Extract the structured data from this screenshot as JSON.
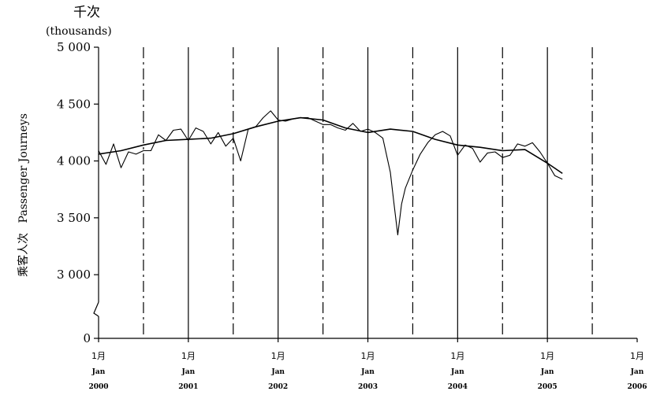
{
  "chart_data": {
    "type": "line",
    "title": "",
    "unit_label_cn": "千次",
    "unit_label_en": "(thousands)",
    "ylabel_cn": "乘客人次",
    "ylabel_en": "Passenger Journeys",
    "ylim": [
      2800,
      5000
    ],
    "y_axis_break": true,
    "yticks": [
      {
        "value": 0,
        "label": "0"
      },
      {
        "value": 3000,
        "label": "3 000"
      },
      {
        "value": 3500,
        "label": "3 500"
      },
      {
        "value": 4000,
        "label": "4 000"
      },
      {
        "value": 4500,
        "label": "4 500"
      },
      {
        "value": 5000,
        "label": "5 000"
      }
    ],
    "xlim": [
      2000.0,
      2006.0
    ],
    "xticks": [
      {
        "value": 2000,
        "cn": "1月",
        "en": "Jan",
        "year": "2000"
      },
      {
        "value": 2001,
        "cn": "1月",
        "en": "Jan",
        "year": "2001"
      },
      {
        "value": 2002,
        "cn": "1月",
        "en": "Jan",
        "year": "2002"
      },
      {
        "value": 2003,
        "cn": "1月",
        "en": "Jan",
        "year": "2003"
      },
      {
        "value": 2004,
        "cn": "1月",
        "en": "Jan",
        "year": "2004"
      },
      {
        "value": 2005,
        "cn": "1月",
        "en": "Jan",
        "year": "2005"
      },
      {
        "value": 2006,
        "cn": "1月",
        "en": "Jan",
        "year": "2006"
      }
    ],
    "solid_gridlines_at": [
      2001,
      2002,
      2003,
      2004,
      2005
    ],
    "dashed_gridlines_at": [
      2000.5,
      2001.5,
      2002.5,
      2003.5,
      2004.5,
      2005.5
    ],
    "grid": true,
    "legend": "none",
    "series": [
      {
        "style": "monthly",
        "x": [
          2000.0,
          2000.083,
          2000.167,
          2000.25,
          2000.333,
          2000.417,
          2000.5,
          2000.583,
          2000.667,
          2000.75,
          2000.833,
          2000.917,
          2001.0,
          2001.083,
          2001.167,
          2001.25,
          2001.333,
          2001.417,
          2001.5,
          2001.583,
          2001.667,
          2001.75,
          2001.833,
          2001.917,
          2002.0,
          2002.083,
          2002.167,
          2002.25,
          2002.333,
          2002.417,
          2002.5,
          2002.583,
          2002.667,
          2002.75,
          2002.833,
          2002.917,
          2003.0,
          2003.083,
          2003.167,
          2003.25,
          2003.292,
          2003.333,
          2003.375,
          2003.417,
          2003.5,
          2003.583,
          2003.667,
          2003.75,
          2003.833,
          2003.917,
          2004.0,
          2004.083,
          2004.167,
          2004.25,
          2004.333,
          2004.417,
          2004.5,
          2004.583,
          2004.667,
          2004.75,
          2004.833,
          2004.917,
          2005.0,
          2005.083,
          2005.167
        ],
        "y": [
          4090,
          3970,
          4150,
          3940,
          4080,
          4060,
          4090,
          4090,
          4230,
          4180,
          4270,
          4280,
          4180,
          4290,
          4260,
          4150,
          4250,
          4130,
          4200,
          4000,
          4280,
          4300,
          4380,
          4440,
          4360,
          4350,
          4370,
          4380,
          4380,
          4350,
          4320,
          4320,
          4290,
          4270,
          4330,
          4260,
          4280,
          4250,
          4200,
          3900,
          3620,
          3350,
          3620,
          3760,
          3920,
          4060,
          4160,
          4230,
          4260,
          4220,
          4050,
          4140,
          4110,
          3990,
          4070,
          4080,
          4030,
          4050,
          4150,
          4130,
          4160,
          4080,
          3980,
          3870,
          3840
        ]
      },
      {
        "style": "trend",
        "x": [
          2000.0,
          2000.25,
          2000.5,
          2000.75,
          2001.0,
          2001.25,
          2001.5,
          2001.75,
          2002.0,
          2002.25,
          2002.5,
          2002.75,
          2003.0,
          2003.25,
          2003.5,
          2003.75,
          2004.0,
          2004.25,
          2004.5,
          2004.75,
          2005.0,
          2005.167
        ],
        "y": [
          4060,
          4090,
          4140,
          4180,
          4190,
          4200,
          4240,
          4300,
          4350,
          4380,
          4360,
          4290,
          4250,
          4280,
          4260,
          4190,
          4140,
          4120,
          4090,
          4100,
          3980,
          3890
        ]
      }
    ]
  }
}
